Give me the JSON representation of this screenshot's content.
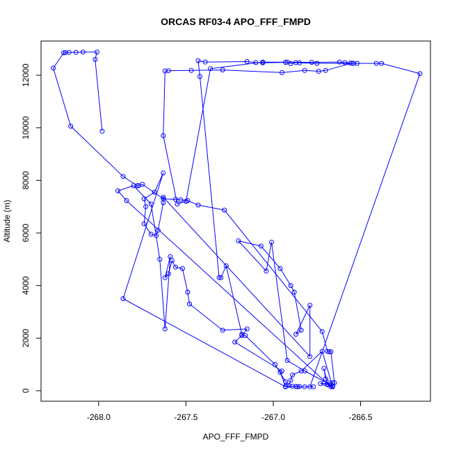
{
  "chart_data": {
    "type": "line",
    "title": "ORCAS RF03-4 APO_FFF_FMPD",
    "xlabel": "APO_FFF_FMPD",
    "ylabel": "Altitude (m)",
    "xlim": [
      -268.33,
      -266.1
    ],
    "ylim": [
      -400,
      13300
    ],
    "xticks": [
      -268.0,
      -267.5,
      -267.0,
      -266.5
    ],
    "xtick_labels": [
      "-268.0",
      "-267.5",
      "-267.0",
      "-266.5"
    ],
    "yticks": [
      0,
      2000,
      4000,
      6000,
      8000,
      10000,
      12000
    ],
    "ytick_labels": [
      "0",
      "2000",
      "4000",
      "6000",
      "8000",
      "10000",
      "12000"
    ],
    "grid": false,
    "series": [
      {
        "color": "#0000ff",
        "marker": "open-circle",
        "x": [
          -267.98,
          -268.02,
          -268.01,
          -268.09,
          -268.13,
          -268.17,
          -268.19,
          -268.2,
          -268.26,
          -268.16,
          -267.86,
          -267.78,
          -267.77,
          -267.75,
          -267.63,
          -267.56,
          -267.53,
          -267.49,
          -267.43,
          -267.28,
          -266.72,
          -266.69,
          -266.68,
          -266.67,
          -266.65,
          -266.66,
          -266.82,
          -266.92,
          -267.01,
          -267.04,
          -267.2,
          -267.07,
          -266.96,
          -266.9,
          -266.88,
          -266.84,
          -266.87,
          -266.79,
          -266.79,
          -267.63,
          -267.63,
          -267.66,
          -267.67,
          -267.7,
          -267.74,
          -267.73,
          -267.74,
          -267.68,
          -267.63,
          -267.86,
          -266.93,
          -266.89,
          -266.93,
          -266.96,
          -266.95,
          -267.22,
          -267.18,
          -267.15,
          -267.29,
          -267.48,
          -267.49,
          -267.52,
          -267.56,
          -267.58,
          -267.6,
          -267.62,
          -267.59,
          -267.62,
          -267.65,
          -267.7,
          -267.8,
          -267.89,
          -267.84,
          -266.67,
          -266.66,
          -266.7,
          -266.71,
          -266.69,
          -266.73,
          -266.71,
          -266.69,
          -266.67,
          -266.66,
          -266.72,
          -266.84,
          -266.89,
          -266.9,
          -266.91,
          -266.93,
          -266.99,
          -267.16,
          -267.18,
          -267.27,
          -267.3,
          -267.31,
          -267.42,
          -267.43,
          -267.39,
          -267.15,
          -267.1,
          -267.06,
          -266.93,
          -266.92,
          -266.9,
          -266.87,
          -266.85,
          -266.75,
          -266.54,
          -266.55,
          -266.7,
          -266.74,
          -266.82,
          -266.95,
          -267.29,
          -267.47,
          -267.6,
          -267.62,
          -267.63,
          -267.55,
          -267.5,
          -267.36,
          -267.06,
          -266.78,
          -266.62,
          -266.59,
          -266.56,
          -266.52,
          -266.41,
          -266.38,
          -266.16,
          -266.79,
          -266.77,
          -266.82,
          -266.86,
          -266.87,
          -266.85,
          -266.93
        ],
        "y": [
          9870,
          12600,
          12880,
          12880,
          12870,
          12870,
          12860,
          12850,
          12270,
          10060,
          8150,
          7800,
          7800,
          7850,
          7300,
          7280,
          7260,
          7230,
          7060,
          6870,
          2250,
          1500,
          1480,
          1480,
          300,
          180,
          750,
          1150,
          5650,
          4550,
          5700,
          5500,
          4650,
          4000,
          3750,
          2300,
          2150,
          3250,
          1300,
          7360,
          7150,
          6100,
          5900,
          5950,
          6350,
          7000,
          7300,
          7550,
          8280,
          3500,
          150,
          170,
          160,
          700,
          750,
          1850,
          2100,
          2350,
          2300,
          3300,
          3750,
          4650,
          4700,
          4950,
          4450,
          4300,
          5100,
          2350,
          5000,
          7100,
          7800,
          7600,
          7230,
          150,
          300,
          450,
          850,
          250,
          270,
          280,
          230,
          220,
          150,
          1500,
          750,
          600,
          400,
          200,
          350,
          1000,
          2100,
          2150,
          4750,
          4300,
          4300,
          11950,
          12550,
          12500,
          12520,
          12480,
          12470,
          12490,
          12500,
          12440,
          12480,
          12470,
          12450,
          12450,
          12460,
          12180,
          12150,
          12180,
          12100,
          12200,
          12180,
          12170,
          12160,
          9700,
          7100,
          7200,
          12250,
          12500,
          12490,
          12500,
          12480,
          12460,
          12450,
          12450,
          12450,
          12060,
          150,
          150,
          150,
          150,
          160,
          160,
          160
        ]
      }
    ]
  }
}
